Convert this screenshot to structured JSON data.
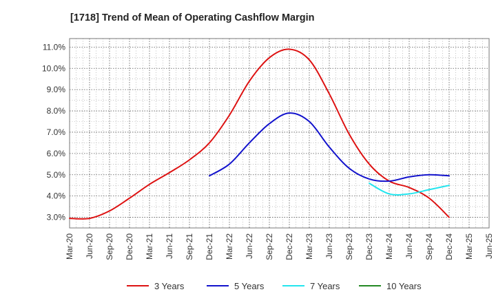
{
  "chart_data": {
    "type": "line",
    "title": "[1718]  Trend of Mean of Operating Cashflow Margin",
    "xlabel": "",
    "ylabel": "",
    "ylim": [
      2.5,
      11.4
    ],
    "yticks": [
      3.0,
      4.0,
      5.0,
      6.0,
      7.0,
      8.0,
      9.0,
      10.0,
      11.0
    ],
    "ytick_labels": [
      "3.0%",
      "4.0%",
      "5.0%",
      "6.0%",
      "7.0%",
      "8.0%",
      "9.0%",
      "10.0%",
      "11.0%"
    ],
    "categories": [
      "Mar-20",
      "Jun-20",
      "Sep-20",
      "Dec-20",
      "Mar-21",
      "Jun-21",
      "Sep-21",
      "Dec-21",
      "Mar-22",
      "Jun-22",
      "Sep-22",
      "Dec-22",
      "Mar-23",
      "Jun-23",
      "Sep-23",
      "Dec-23",
      "Mar-24",
      "Jun-24",
      "Sep-24",
      "Dec-24",
      "Mar-25",
      "Jun-25"
    ],
    "grid": true,
    "legend_position": "bottom",
    "series": [
      {
        "name": "3 Years",
        "color": "#dd1111",
        "values": [
          2.95,
          2.95,
          3.3,
          3.9,
          4.55,
          5.1,
          5.7,
          6.5,
          7.8,
          9.4,
          10.5,
          10.9,
          10.4,
          8.8,
          6.9,
          5.5,
          4.7,
          4.4,
          3.9,
          3.0,
          null,
          null
        ]
      },
      {
        "name": "5 Years",
        "color": "#1111cc",
        "values": [
          null,
          null,
          null,
          null,
          null,
          null,
          null,
          4.95,
          5.5,
          6.5,
          7.4,
          7.9,
          7.5,
          6.3,
          5.3,
          4.8,
          4.7,
          4.9,
          5.0,
          4.95,
          null,
          null
        ]
      },
      {
        "name": "7 Years",
        "color": "#22e5ee",
        "values": [
          null,
          null,
          null,
          null,
          null,
          null,
          null,
          null,
          null,
          null,
          null,
          null,
          null,
          null,
          null,
          4.6,
          4.1,
          4.1,
          4.3,
          4.5,
          null,
          null
        ]
      },
      {
        "name": "10 Years",
        "color": "#228822",
        "values": [
          null,
          null,
          null,
          null,
          null,
          null,
          null,
          null,
          null,
          null,
          null,
          null,
          null,
          null,
          null,
          null,
          null,
          null,
          null,
          null,
          null,
          null
        ]
      }
    ]
  }
}
